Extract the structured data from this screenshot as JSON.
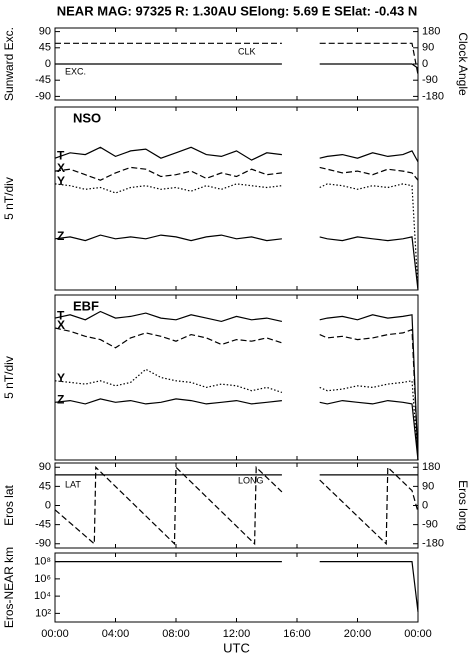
{
  "title": "NEAR MAG: 97325  R: 1.30AU  SElong:    5.69 E  SElat:   -0.43 N",
  "chart_data": [
    {
      "type": "line",
      "ylabel": "Sunward Exc.",
      "y2label": "Clock Angle",
      "x": [
        0,
        1,
        2,
        3,
        4,
        5,
        6,
        7,
        8,
        9,
        10,
        11,
        12,
        13,
        14,
        15,
        16,
        17.5,
        18,
        19,
        20,
        21,
        22,
        23,
        23.6,
        24
      ],
      "xlim": [
        0,
        24
      ],
      "ylim": [
        -100,
        100
      ],
      "yticks": [
        90,
        45,
        0,
        -45,
        -90
      ],
      "y2lim": [
        -200,
        200
      ],
      "y2ticks": [
        180,
        90,
        0,
        -90,
        -180
      ],
      "series": [
        {
          "name": "CLK",
          "color": "#000000",
          "style": "dashed",
          "axis": "y2",
          "values": [
            115,
            115,
            115,
            115,
            115,
            115,
            115,
            115,
            115,
            115,
            115,
            115,
            115,
            115,
            115,
            115,
            null,
            115,
            115,
            115,
            115,
            115,
            115,
            115,
            115,
            -60
          ]
        },
        {
          "name": "EXC.",
          "color": "#000000",
          "style": "solid",
          "values": [
            0,
            0,
            0,
            0,
            0,
            0,
            0,
            0,
            0,
            0,
            0,
            0,
            0,
            0,
            0,
            0,
            null,
            0,
            0,
            0,
            0,
            0,
            0,
            0,
            0,
            -12
          ]
        }
      ]
    },
    {
      "type": "line",
      "title": "NSO",
      "ylabel": "5 nT/div",
      "x": [
        0,
        1,
        2,
        3,
        4,
        5,
        6,
        7,
        8,
        9,
        10,
        11,
        12,
        13,
        14,
        15,
        16,
        17.5,
        18,
        19,
        20,
        21,
        22,
        23,
        23.6,
        24
      ],
      "xlim": [
        0,
        24
      ],
      "ylim": [
        0,
        100
      ],
      "series": [
        {
          "name": "T",
          "color": "#000000",
          "style": "solid",
          "values": [
            72,
            75,
            74,
            78,
            73,
            76,
            77,
            72,
            75,
            78,
            74,
            73,
            76,
            71,
            75,
            74,
            null,
            72,
            73,
            74,
            72,
            75,
            73,
            74,
            76,
            70
          ]
        },
        {
          "name": "X",
          "color": "#000000",
          "style": "dashed",
          "values": [
            65,
            66,
            63,
            60,
            64,
            67,
            66,
            62,
            63,
            65,
            61,
            64,
            62,
            66,
            63,
            64,
            null,
            67,
            66,
            64,
            65,
            63,
            66,
            65,
            64,
            60
          ]
        },
        {
          "name": "Y",
          "color": "#000000",
          "style": "dotted",
          "values": [
            58,
            57,
            55,
            56,
            53,
            56,
            57,
            55,
            56,
            54,
            57,
            55,
            58,
            57,
            56,
            57,
            null,
            56,
            58,
            57,
            55,
            57,
            56,
            58,
            57,
            0
          ]
        },
        {
          "name": "Z",
          "color": "#000000",
          "style": "solid",
          "values": [
            28,
            29,
            27,
            30,
            28,
            29,
            28,
            30,
            29,
            27,
            29,
            30,
            28,
            29,
            27,
            28,
            null,
            29,
            28,
            27,
            29,
            28,
            27,
            28,
            29,
            0
          ]
        }
      ]
    },
    {
      "type": "line",
      "title": "EBF",
      "ylabel": "5 nT/div",
      "x": [
        0,
        1,
        2,
        3,
        4,
        5,
        6,
        7,
        8,
        9,
        10,
        11,
        12,
        13,
        14,
        15,
        16,
        17.5,
        18,
        19,
        20,
        21,
        22,
        23,
        23.6,
        24
      ],
      "xlim": [
        0,
        24
      ],
      "ylim": [
        0,
        100
      ],
      "series": [
        {
          "name": "T",
          "color": "#000000",
          "style": "solid",
          "values": [
            86,
            88,
            85,
            90,
            86,
            87,
            89,
            86,
            85,
            88,
            86,
            84,
            87,
            85,
            86,
            84,
            null,
            85,
            86,
            87,
            85,
            88,
            86,
            87,
            88,
            0
          ]
        },
        {
          "name": "X",
          "color": "#000000",
          "style": "dashed",
          "values": [
            80,
            78,
            75,
            73,
            68,
            74,
            77,
            75,
            72,
            76,
            74,
            70,
            73,
            72,
            74,
            71,
            null,
            76,
            74,
            75,
            73,
            74,
            76,
            77,
            79,
            0
          ]
        },
        {
          "name": "Y",
          "color": "#000000",
          "style": "dotted",
          "values": [
            48,
            47,
            46,
            48,
            45,
            47,
            55,
            50,
            48,
            47,
            44,
            46,
            45,
            42,
            44,
            41,
            null,
            44,
            42,
            43,
            45,
            44,
            46,
            47,
            48,
            0
          ]
        },
        {
          "name": "Z",
          "color": "#000000",
          "style": "solid",
          "values": [
            35,
            36,
            34,
            37,
            35,
            36,
            34,
            35,
            37,
            36,
            34,
            35,
            36,
            34,
            35,
            36,
            null,
            35,
            34,
            36,
            35,
            34,
            36,
            35,
            34,
            0
          ]
        }
      ]
    },
    {
      "type": "line",
      "ylabel": "Eros lat",
      "y2label": "Eros long",
      "xlim": [
        0,
        24
      ],
      "ylim": [
        -100,
        100
      ],
      "yticks": [
        90,
        45,
        0,
        -45,
        -90
      ],
      "y2lim": [
        -200,
        200
      ],
      "y2ticks": [
        180,
        90,
        0,
        -90,
        -180
      ],
      "series": [
        {
          "name": "LAT",
          "color": "#000000",
          "style": "solid",
          "x": [
            0,
            15,
            16,
            17.5,
            23.6,
            24
          ],
          "values": [
            72,
            72,
            null,
            72,
            72,
            72
          ]
        },
        {
          "name": "LONG",
          "color": "#000000",
          "style": "dashed",
          "axis": "y2",
          "x": [
            0,
            2.6,
            2.7,
            7.9,
            8.0,
            13.2,
            13.3,
            15,
            16,
            17.5,
            21.9,
            22.0,
            23.6,
            24
          ],
          "values": [
            -20,
            -180,
            180,
            -180,
            180,
            -180,
            180,
            64,
            null,
            120,
            -180,
            180,
            70,
            -30
          ]
        }
      ]
    },
    {
      "type": "line",
      "ylabel": "Eros-NEAR km",
      "log_scale": true,
      "x": [
        0,
        15,
        16,
        17.5,
        23.6,
        24
      ],
      "xlim": [
        0,
        24
      ],
      "ylim": [
        10,
        1000000000
      ],
      "yticks": [
        {
          "value": 100000000,
          "label": "10⁸"
        },
        {
          "value": 1000000,
          "label": "10⁶"
        },
        {
          "value": 10000,
          "label": "10⁴"
        },
        {
          "value": 100,
          "label": "10²"
        }
      ],
      "xlabel": "UTC",
      "xticks": [
        {
          "value": 0,
          "label": "00:00"
        },
        {
          "value": 4,
          "label": "04:00"
        },
        {
          "value": 8,
          "label": "08:00"
        },
        {
          "value": 12,
          "label": "12:00"
        },
        {
          "value": 16,
          "label": "16:00"
        },
        {
          "value": 20,
          "label": "20:00"
        },
        {
          "value": 24,
          "label": "00:00"
        }
      ],
      "series": [
        {
          "name": "Eros-NEAR km",
          "color": "#000000",
          "style": "solid",
          "values": [
            100000000,
            100000000,
            null,
            100000000,
            100000000,
            150
          ]
        }
      ]
    }
  ]
}
